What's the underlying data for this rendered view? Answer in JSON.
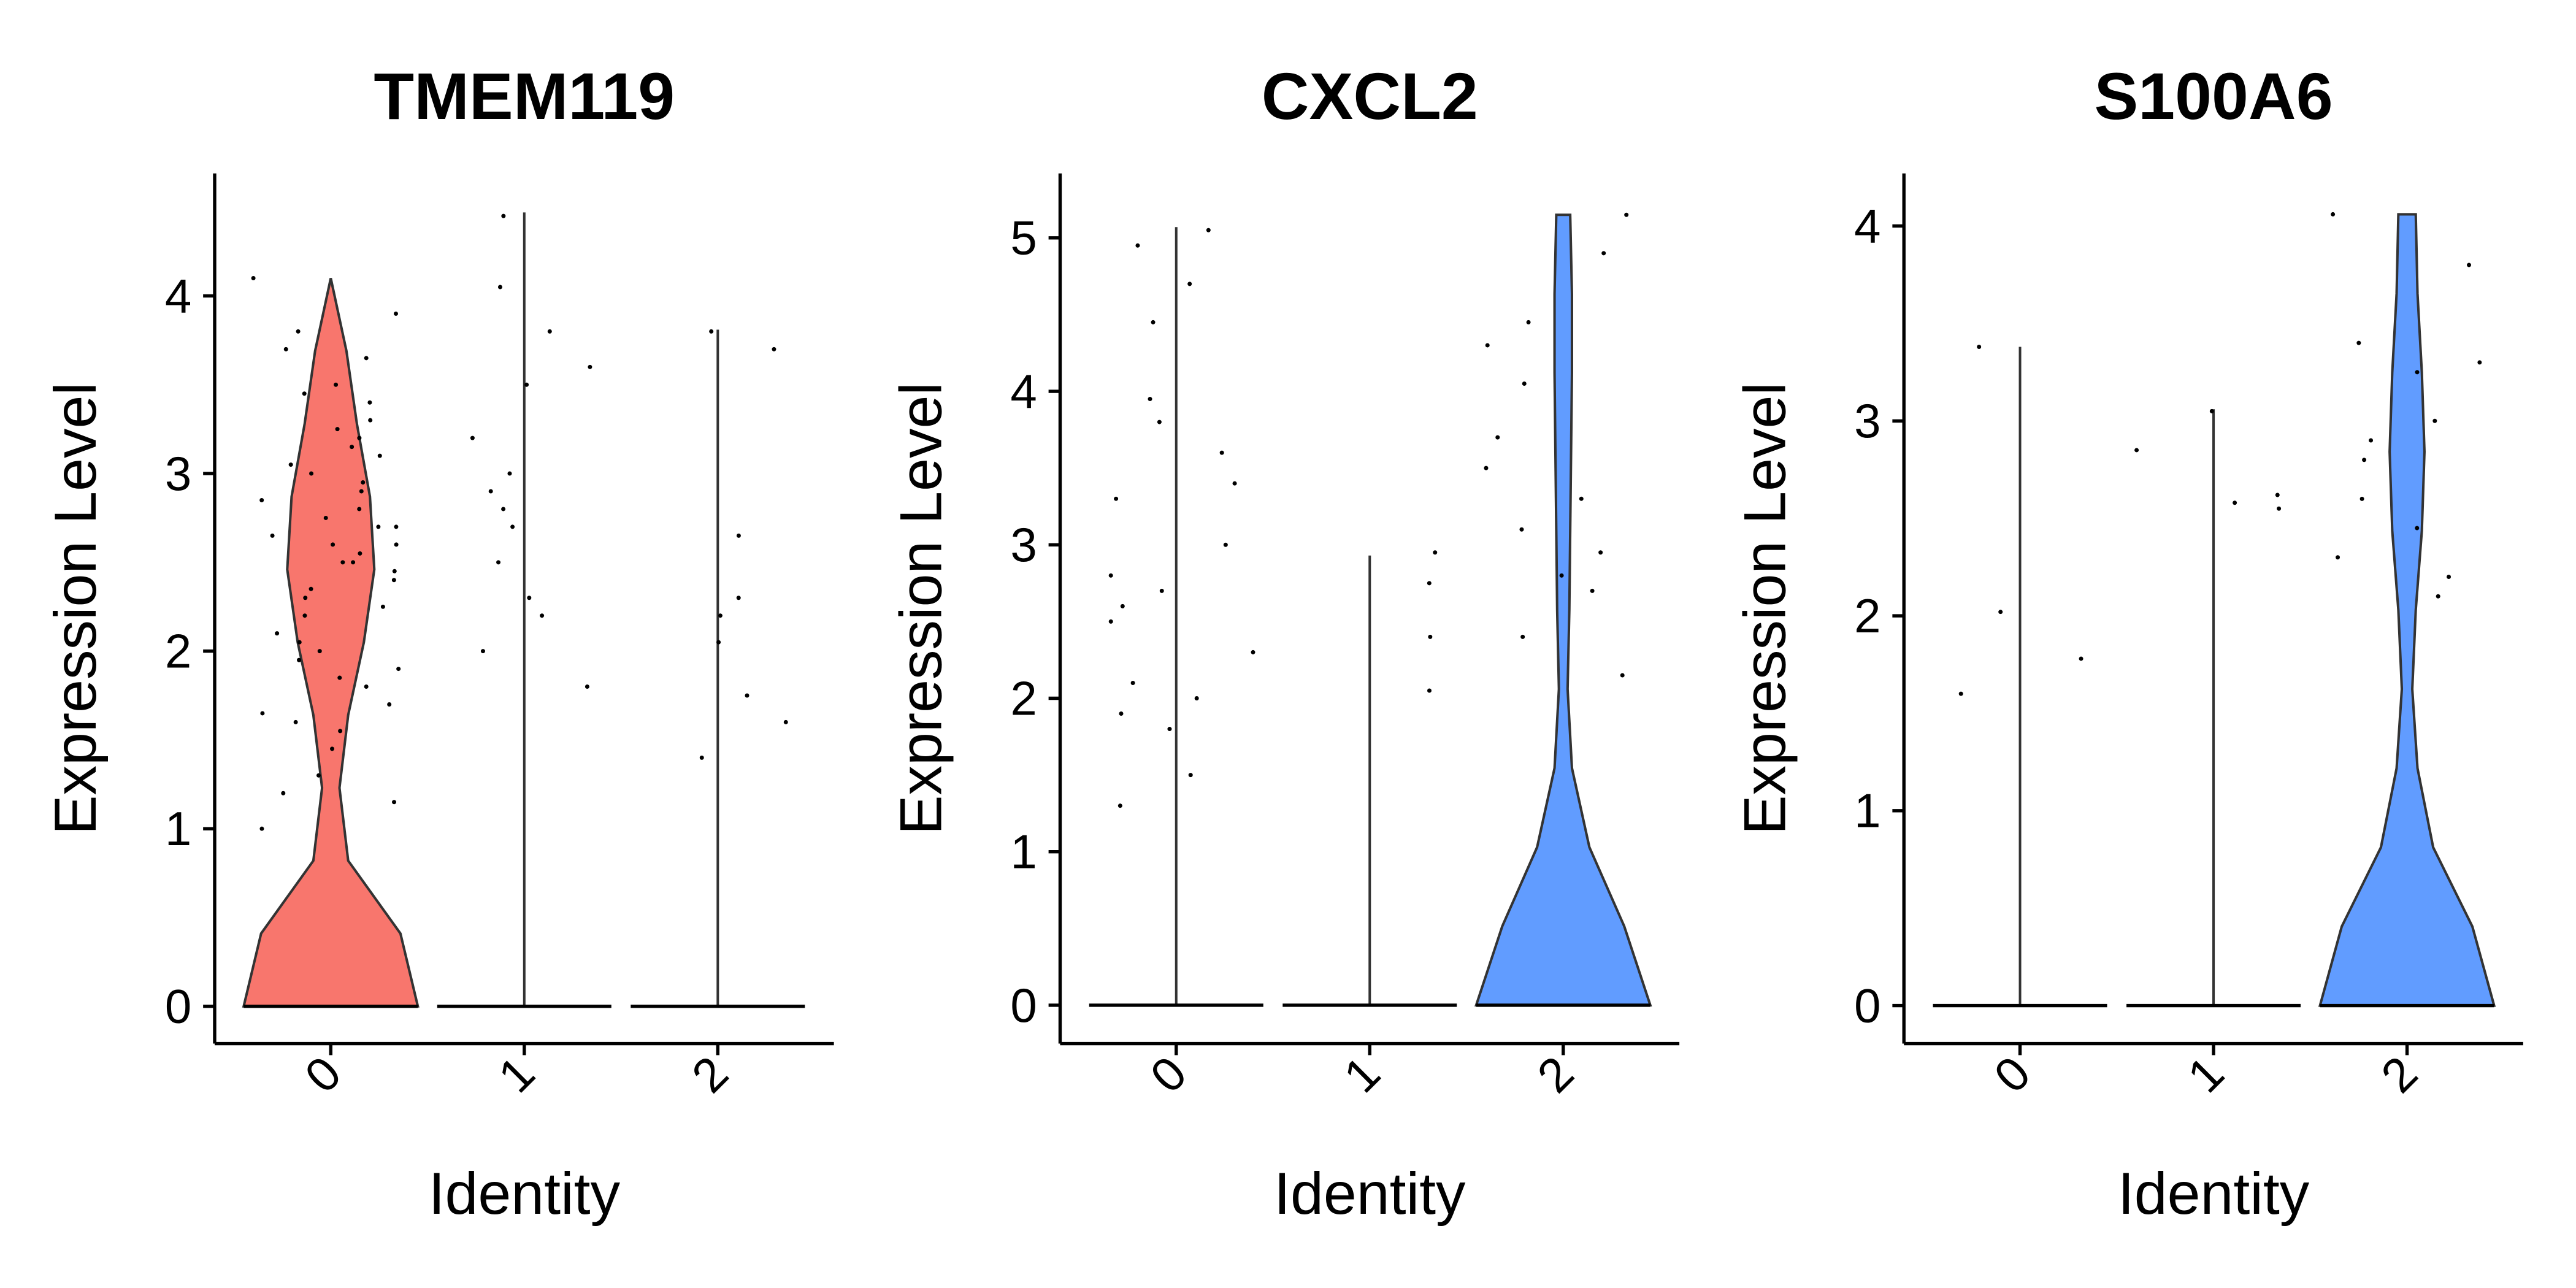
{
  "chart_data": [
    {
      "type": "violin",
      "title": "TMEM119",
      "x_label": "Identity",
      "y_label": "Expression Level",
      "categories": [
        "0",
        "1",
        "2"
      ],
      "ylim": [
        -0.21,
        4.69
      ],
      "yticks": [
        0,
        1,
        2,
        3,
        4
      ],
      "violins": [
        {
          "color": "#F8766D",
          "max": 4.1,
          "density": [
            1,
            0.8,
            0.2,
            0.1,
            0.2,
            0.38,
            0.5,
            0.45,
            0.3,
            0.18,
            0
          ],
          "points": [
            4.1,
            3.9,
            3.8,
            3.7,
            3.65,
            3.5,
            3.45,
            3.4,
            3.3,
            3.25,
            3.2,
            3.15,
            3.1,
            3.05,
            3.0,
            2.95,
            2.9,
            2.85,
            2.8,
            2.75,
            2.7,
            2.7,
            2.65,
            2.6,
            2.6,
            2.55,
            2.5,
            2.5,
            2.45,
            2.4,
            2.35,
            2.3,
            2.25,
            2.2,
            2.1,
            2.05,
            2.0,
            1.95,
            1.9,
            1.85,
            1.8,
            1.7,
            1.65,
            1.6,
            1.55,
            1.45,
            1.3,
            1.2,
            1.15,
            1.0
          ]
        },
        {
          "color": "#00BA38",
          "max": 4.47,
          "density": [
            0,
            0,
            0,
            0,
            0,
            0,
            0,
            0,
            0,
            0,
            0
          ],
          "points": [
            4.45,
            4.05,
            3.8,
            3.6,
            3.5,
            3.2,
            3.0,
            2.9,
            2.8,
            2.7,
            2.5,
            2.3,
            2.2,
            2.0,
            1.8
          ]
        },
        {
          "color": "#619CFF",
          "max": 3.81,
          "density": [
            0,
            0,
            0,
            0,
            0,
            0,
            0,
            0,
            0,
            0,
            0
          ],
          "points": [
            3.8,
            3.7,
            2.65,
            2.3,
            2.2,
            2.05,
            1.75,
            1.6,
            1.4
          ]
        }
      ]
    },
    {
      "type": "violin",
      "title": "CXCL2",
      "x_label": "Identity",
      "y_label": "Expression Level",
      "categories": [
        "0",
        "1",
        "2"
      ],
      "ylim": [
        -0.25,
        5.42
      ],
      "yticks": [
        0,
        1,
        2,
        3,
        4,
        5
      ],
      "violins": [
        {
          "color": "#F8766D",
          "max": 5.07,
          "density": [
            0,
            0,
            0,
            0,
            0,
            0,
            0,
            0,
            0,
            0,
            0
          ],
          "points": [
            5.05,
            4.95,
            4.7,
            4.45,
            3.95,
            3.8,
            3.6,
            3.4,
            3.3,
            3.0,
            2.8,
            2.7,
            2.6,
            2.5,
            2.3,
            2.1,
            2.0,
            1.9,
            1.8,
            1.5,
            1.3
          ]
        },
        {
          "color": "#00BA38",
          "max": 2.93,
          "density": [
            0,
            0,
            0,
            0,
            0,
            0,
            0,
            0,
            0,
            0,
            0
          ],
          "points": [
            2.95,
            2.75,
            2.4,
            2.05
          ]
        },
        {
          "color": "#619CFF",
          "max": 5.15,
          "density": [
            1,
            0.7,
            0.3,
            0.1,
            0.05,
            0.07,
            0.08,
            0.09,
            0.1,
            0.1,
            0.08
          ],
          "points": [
            5.15,
            4.9,
            4.45,
            4.3,
            4.05,
            3.7,
            3.5,
            3.3,
            3.1,
            2.95,
            2.8,
            2.7,
            2.4,
            2.15
          ]
        }
      ]
    },
    {
      "type": "violin",
      "title": "S100A6",
      "x_label": "Identity",
      "y_label": "Expression Level",
      "categories": [
        "0",
        "1",
        "2"
      ],
      "ylim": [
        -0.195,
        4.27
      ],
      "yticks": [
        0,
        1,
        2,
        3,
        4
      ],
      "violins": [
        {
          "color": "#F8766D",
          "max": 3.38,
          "density": [
            0,
            0,
            0,
            0,
            0,
            0,
            0,
            0,
            0,
            0,
            0
          ],
          "points": [
            3.38,
            2.02,
            1.78,
            1.6
          ]
        },
        {
          "color": "#00BA38",
          "max": 3.06,
          "density": [
            0,
            0,
            0,
            0,
            0,
            0,
            0,
            0,
            0,
            0,
            0
          ],
          "points": [
            3.05,
            2.85,
            2.62,
            2.58,
            2.55
          ]
        },
        {
          "color": "#619CFF",
          "max": 4.06,
          "density": [
            1,
            0.75,
            0.3,
            0.12,
            0.06,
            0.1,
            0.17,
            0.2,
            0.17,
            0.12,
            0.1
          ],
          "points": [
            4.06,
            3.8,
            3.4,
            3.3,
            3.25,
            3.0,
            2.9,
            2.8,
            2.6,
            2.45,
            2.3,
            2.2,
            2.1
          ]
        }
      ]
    }
  ]
}
